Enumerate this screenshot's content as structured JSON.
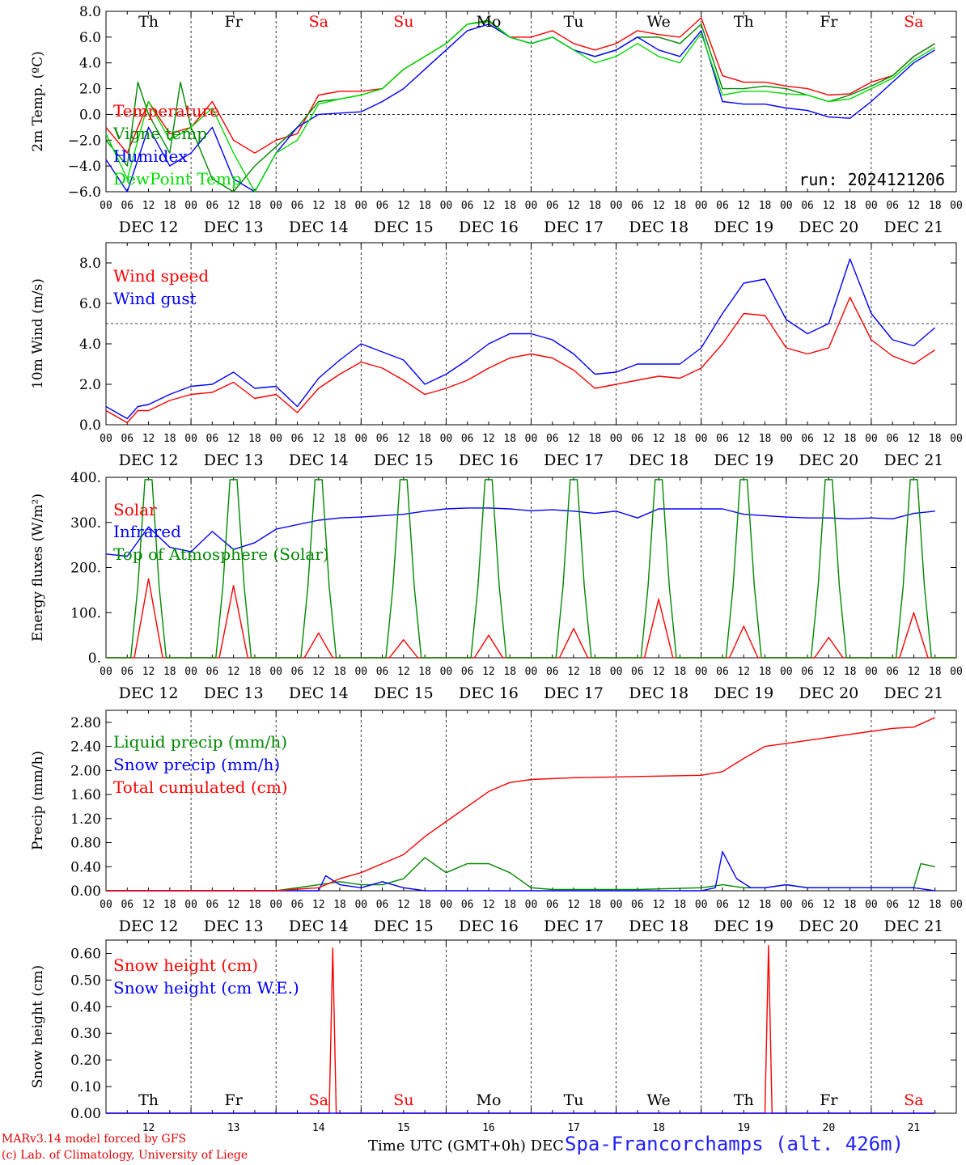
{
  "colors": {
    "red": "#ff0000",
    "green": "#008800",
    "blue": "#0000ff",
    "lightgreen": "#00dd00",
    "black": "#000000"
  },
  "days": [
    "12",
    "13",
    "14",
    "15",
    "16",
    "17",
    "18",
    "19",
    "20",
    "21"
  ],
  "weekdays": [
    {
      "label": "Th",
      "color": "#000000"
    },
    {
      "label": "Fr",
      "color": "#000000"
    },
    {
      "label": "Sa",
      "color": "#ff0000"
    },
    {
      "label": "Su",
      "color": "#ff0000"
    },
    {
      "label": "Mo",
      "color": "#000000"
    },
    {
      "label": "Tu",
      "color": "#000000"
    },
    {
      "label": "We",
      "color": "#000000"
    },
    {
      "label": "Th",
      "color": "#000000"
    },
    {
      "label": "Fr",
      "color": "#000000"
    },
    {
      "label": "Sa",
      "color": "#ff0000"
    }
  ],
  "hour_ticks": [
    "00",
    "06",
    "12",
    "18"
  ],
  "month": "DEC",
  "run_label": "run: 2024121206",
  "footer": {
    "credit1": "MARv3.14 model forced by GFS",
    "credit2": "(c) Lab. of Climatology, University of Liege",
    "x_title": "Time UTC (GMT+0h) DEC",
    "station": "Spa-Francorchamps (alt. 426m)"
  },
  "chart_data": [
    {
      "type": "line",
      "ylabel": "2m Temp. (ºC)",
      "ylim": [
        -6,
        8
      ],
      "yticks": [
        "8.0",
        "6.0",
        "4.0",
        "2.0",
        "0.0",
        "−2.0",
        "−4.0",
        "−6.0"
      ],
      "ytick_values": [
        8,
        6,
        4,
        2,
        0,
        -2,
        -4,
        -6
      ],
      "ref_line": 0,
      "series": [
        {
          "name": "Temperature",
          "color": "#ff0000",
          "x": [
            0,
            6,
            12,
            18,
            24,
            30,
            36,
            42,
            48,
            54,
            60,
            66,
            72,
            78,
            84,
            90,
            96,
            102,
            108,
            114,
            120,
            126,
            132,
            138,
            144,
            150,
            156,
            162,
            168,
            174,
            180,
            186,
            192,
            198,
            204,
            210,
            216,
            222,
            228,
            234
          ],
          "y": [
            -1,
            -3,
            1,
            -1.5,
            -1,
            1,
            -2,
            -3,
            -2,
            -1.5,
            1.5,
            1.8,
            1.8,
            2,
            3.5,
            4.5,
            5.5,
            7,
            7.2,
            6,
            6,
            6.5,
            5.5,
            5,
            5.5,
            6.5,
            6.2,
            6,
            7.5,
            3,
            2.5,
            2.5,
            2.2,
            2,
            1.5,
            1.6,
            2.5,
            3,
            4.5,
            5.5
          ]
        },
        {
          "name": "Vigne temp",
          "color": "#008800",
          "x": [
            0,
            6,
            9,
            12,
            18,
            21,
            24,
            30,
            36,
            42,
            48,
            54,
            60,
            66,
            72,
            78,
            84,
            90,
            96,
            102,
            108,
            114,
            120,
            126,
            132,
            138,
            144,
            150,
            156,
            162,
            168,
            174,
            180,
            186,
            192,
            198,
            204,
            210,
            216,
            222,
            228,
            234
          ],
          "y": [
            -2,
            -4,
            2.5,
            0,
            -3,
            2.5,
            -1,
            -5,
            -6,
            -4,
            -2.5,
            -1,
            1,
            1.2,
            1.5,
            2,
            3.5,
            4.5,
            5.5,
            7,
            7.3,
            6,
            5.5,
            6,
            5,
            4.5,
            5,
            6,
            6,
            5.5,
            7,
            2,
            2,
            2.2,
            2,
            1.5,
            1,
            1.5,
            2.2,
            3,
            4.5,
            5.5
          ]
        },
        {
          "name": "Humidex",
          "color": "#0000ff",
          "x": [
            0,
            6,
            12,
            18,
            24,
            30,
            36,
            42,
            48,
            54,
            60,
            66,
            72,
            78,
            84,
            90,
            96,
            102,
            108,
            114,
            120,
            126,
            132,
            138,
            144,
            150,
            156,
            162,
            168,
            174,
            180,
            186,
            192,
            198,
            204,
            210,
            216,
            222,
            228,
            234
          ],
          "y": [
            -3.5,
            -6,
            -1,
            -4,
            -3,
            -1,
            -5,
            -6,
            -3,
            -1,
            0,
            0.1,
            0.2,
            1,
            2,
            3.5,
            5,
            6.5,
            7,
            6,
            5.5,
            6,
            5,
            4.5,
            5,
            6,
            5,
            4.5,
            6.5,
            1,
            0.8,
            0.8,
            0.5,
            0.3,
            -0.2,
            -0.3,
            1,
            2.5,
            4,
            5
          ]
        },
        {
          "name": "DewPoint Temp",
          "color": "#00dd00",
          "x": [
            0,
            6,
            12,
            18,
            24,
            30,
            36,
            42,
            48,
            54,
            60,
            66,
            72,
            78,
            84,
            90,
            96,
            102,
            108,
            114,
            120,
            126,
            132,
            138,
            144,
            150,
            156,
            162,
            168,
            174,
            180,
            186,
            192,
            198,
            204,
            210,
            216,
            222,
            228,
            234
          ],
          "y": [
            -1.5,
            -5,
            1,
            -2,
            -1,
            0.5,
            -3,
            -6,
            -3,
            -2,
            0.8,
            1.2,
            1.5,
            2,
            3.5,
            4.5,
            5.5,
            7,
            7.2,
            6,
            5.5,
            6,
            5,
            4,
            4.5,
            5.5,
            4.5,
            4,
            6.3,
            1.5,
            1.8,
            1.8,
            1.6,
            1.5,
            1,
            1.2,
            2,
            2.8,
            4.2,
            5.2
          ]
        }
      ]
    },
    {
      "type": "line",
      "ylabel": "10m Wind (m/s)",
      "ylim": [
        0,
        9
      ],
      "yticks": [
        "8.0",
        "6.0",
        "4.0",
        "2.0",
        "0.0"
      ],
      "ytick_values": [
        8,
        6,
        4,
        2,
        0
      ],
      "ref_line": 5,
      "series": [
        {
          "name": "Wind speed",
          "color": "#ff0000",
          "x": [
            0,
            3,
            6,
            9,
            12,
            18,
            24,
            30,
            36,
            42,
            48,
            54,
            60,
            66,
            72,
            78,
            84,
            90,
            96,
            102,
            108,
            114,
            120,
            126,
            132,
            138,
            144,
            150,
            156,
            162,
            168,
            174,
            180,
            186,
            192,
            198,
            204,
            210,
            216,
            222,
            228,
            234
          ],
          "y": [
            0.7,
            0.4,
            0.1,
            0.7,
            0.7,
            1.2,
            1.5,
            1.6,
            2.1,
            1.3,
            1.5,
            0.6,
            1.8,
            2.5,
            3.1,
            2.8,
            2.2,
            1.5,
            1.8,
            2.2,
            2.8,
            3.3,
            3.5,
            3.3,
            2.7,
            1.8,
            2,
            2.2,
            2.4,
            2.3,
            2.8,
            4,
            5.5,
            5.4,
            3.8,
            3.5,
            3.8,
            6.3,
            4.2,
            3.4,
            3,
            3.7
          ]
        },
        {
          "name": "Wind gust",
          "color": "#0000ff",
          "x": [
            0,
            3,
            6,
            9,
            12,
            18,
            24,
            30,
            36,
            42,
            48,
            54,
            60,
            66,
            72,
            78,
            84,
            90,
            96,
            102,
            108,
            114,
            120,
            126,
            132,
            138,
            144,
            150,
            156,
            162,
            168,
            174,
            180,
            186,
            192,
            198,
            204,
            210,
            216,
            222,
            228,
            234
          ],
          "y": [
            0.9,
            0.6,
            0.3,
            0.9,
            1,
            1.5,
            1.9,
            2,
            2.6,
            1.8,
            1.9,
            0.9,
            2.3,
            3.2,
            4,
            3.6,
            3.2,
            2,
            2.5,
            3.2,
            4,
            4.5,
            4.5,
            4.2,
            3.5,
            2.5,
            2.6,
            3,
            3,
            3,
            3.8,
            5.5,
            7,
            7.2,
            5.2,
            4.5,
            5,
            8.2,
            5.5,
            4.2,
            3.9,
            4.8
          ]
        }
      ]
    },
    {
      "type": "line",
      "ylabel": "Energy fluxes (W/m²)",
      "ylim": [
        0,
        400
      ],
      "yticks": [
        "400.",
        "300.",
        "200.",
        "100.",
        "0."
      ],
      "ytick_values": [
        400,
        300,
        200,
        100,
        0
      ],
      "series": [
        {
          "name": "Solar",
          "color": "#ff0000",
          "peaks": [
            175,
            160,
            55,
            40,
            50,
            65,
            130,
            70,
            45,
            100
          ]
        },
        {
          "name": "Infrared",
          "color": "#0000ff",
          "x": [
            0,
            6,
            12,
            18,
            24,
            30,
            36,
            42,
            48,
            54,
            60,
            66,
            72,
            78,
            84,
            90,
            96,
            102,
            108,
            114,
            120,
            126,
            132,
            138,
            144,
            150,
            156,
            162,
            168,
            174,
            180,
            186,
            192,
            198,
            204,
            210,
            216,
            222,
            228,
            234
          ],
          "y": [
            230,
            225,
            290,
            245,
            235,
            280,
            240,
            255,
            285,
            295,
            305,
            310,
            312,
            315,
            318,
            325,
            330,
            332,
            332,
            330,
            326,
            328,
            325,
            320,
            325,
            310,
            330,
            330,
            330,
            330,
            318,
            315,
            312,
            310,
            310,
            308,
            310,
            308,
            320,
            325
          ]
        },
        {
          "name": "Top of Atmosphere (Solar)",
          "color": "#008800",
          "peak": 395
        }
      ]
    },
    {
      "type": "line",
      "ylabel": "Precip (mm/h)",
      "ylim": [
        0,
        3.0
      ],
      "yticks": [
        "2.80",
        "2.40",
        "2.00",
        "1.60",
        "1.20",
        "0.80",
        "0.40",
        "0.00"
      ],
      "ytick_values": [
        2.8,
        2.4,
        2.0,
        1.6,
        1.2,
        0.8,
        0.4,
        0.0
      ],
      "series": [
        {
          "name": "Liquid precip (mm/h)",
          "color": "#008800",
          "x": [
            0,
            48,
            60,
            66,
            72,
            78,
            84,
            90,
            96,
            102,
            108,
            114,
            120,
            126,
            132,
            150,
            168,
            174,
            180,
            186,
            192,
            198,
            204,
            210,
            216,
            222,
            228,
            230,
            234
          ],
          "y": [
            0,
            0,
            0.1,
            0.15,
            0.1,
            0.1,
            0.2,
            0.55,
            0.3,
            0.45,
            0.45,
            0.3,
            0.05,
            0.02,
            0.02,
            0.02,
            0.05,
            0.1,
            0.05,
            0.05,
            0.1,
            0.05,
            0.05,
            0.05,
            0.05,
            0.05,
            0.05,
            0.45,
            0.4
          ]
        },
        {
          "name": "Snow precip (mm/h)",
          "color": "#0000ff",
          "x": [
            0,
            60,
            62,
            66,
            72,
            78,
            84,
            90,
            168,
            172,
            174,
            178,
            182,
            186,
            192,
            198,
            204,
            210,
            216,
            222,
            228,
            234
          ],
          "y": [
            0,
            0,
            0.25,
            0.1,
            0.05,
            0.15,
            0.05,
            0,
            0,
            0.05,
            0.65,
            0.2,
            0.05,
            0.05,
            0.1,
            0.05,
            0.05,
            0.05,
            0.05,
            0.05,
            0.05,
            0
          ]
        },
        {
          "name": "Total cumulated (cm)",
          "color": "#ff0000",
          "x": [
            0,
            48,
            60,
            66,
            72,
            78,
            84,
            90,
            96,
            102,
            108,
            114,
            120,
            132,
            150,
            168,
            174,
            180,
            186,
            192,
            198,
            204,
            210,
            216,
            222,
            228,
            234
          ],
          "y": [
            0,
            0,
            0.05,
            0.2,
            0.3,
            0.45,
            0.6,
            0.9,
            1.15,
            1.4,
            1.65,
            1.8,
            1.85,
            1.88,
            1.9,
            1.92,
            1.98,
            2.2,
            2.4,
            2.45,
            2.5,
            2.55,
            2.6,
            2.65,
            2.7,
            2.72,
            2.88
          ]
        }
      ]
    },
    {
      "type": "line",
      "ylabel": "Snow height (cm)",
      "ylim": [
        0,
        0.65
      ],
      "yticks": [
        "0.60",
        "0.50",
        "0.40",
        "0.30",
        "0.20",
        "0.10",
        "0.00"
      ],
      "ytick_values": [
        0.6,
        0.5,
        0.4,
        0.3,
        0.2,
        0.1,
        0.0
      ],
      "series": [
        {
          "name": "Snow height (cm)",
          "color": "#ff0000",
          "x": [
            0,
            63,
            64,
            65,
            186,
            187,
            188,
            234
          ],
          "y": [
            0,
            0,
            0.62,
            0,
            0,
            0.63,
            0,
            0
          ]
        },
        {
          "name": "Snow height (cm W.E.)",
          "color": "#0000ff",
          "x": [
            0,
            234
          ],
          "y": [
            0,
            0
          ]
        }
      ]
    }
  ]
}
